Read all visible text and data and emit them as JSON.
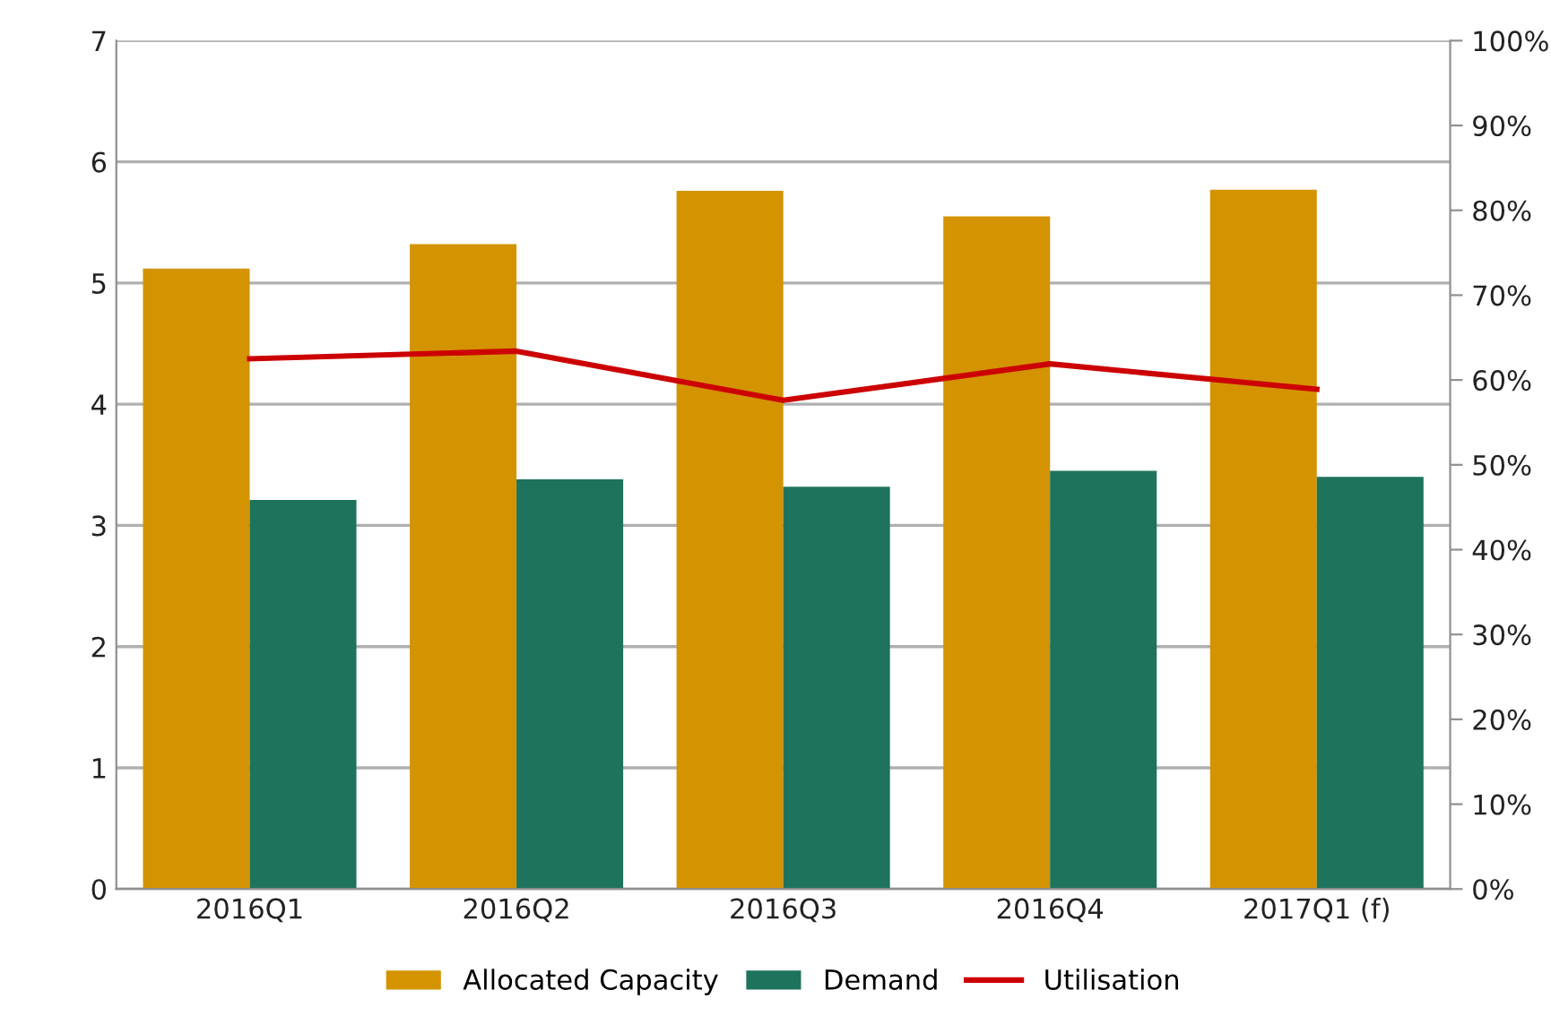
{
  "chart_data": {
    "type": "bar",
    "categories": [
      "2016Q1",
      "2016Q2",
      "2016Q3",
      "2016Q4",
      "2017Q1 (f)"
    ],
    "series": [
      {
        "name": "Allocated Capacity",
        "color": "#d49300",
        "values": [
          5.12,
          5.32,
          5.76,
          5.55,
          5.77
        ]
      },
      {
        "name": "Demand",
        "color": "#1e735c",
        "values": [
          3.21,
          3.38,
          3.32,
          3.45,
          3.4
        ]
      },
      {
        "name": "Utilisation",
        "type": "line",
        "axis": "y2",
        "color": "#cc0000",
        "values": [
          62.5,
          63.4,
          57.6,
          61.9,
          58.9
        ]
      }
    ],
    "ylim": [
      0,
      7
    ],
    "yticks": [
      0,
      1,
      2,
      3,
      4,
      5,
      6,
      7
    ],
    "y2lim": [
      0,
      100
    ],
    "y2ticks": [
      {
        "value": 0,
        "label": "0%"
      },
      {
        "value": 10,
        "label": "10%"
      },
      {
        "value": 20,
        "label": "20%"
      },
      {
        "value": 30,
        "label": "30%"
      },
      {
        "value": 40,
        "label": "40%"
      },
      {
        "value": 50,
        "label": "50%"
      },
      {
        "value": 60,
        "label": "60%"
      },
      {
        "value": 70,
        "label": "70%"
      },
      {
        "value": 80,
        "label": "80%"
      },
      {
        "value": 90,
        "label": "90%"
      },
      {
        "value": 100,
        "label": "100%"
      }
    ],
    "grid": "y",
    "legend": "bottom",
    "marker": "none"
  }
}
